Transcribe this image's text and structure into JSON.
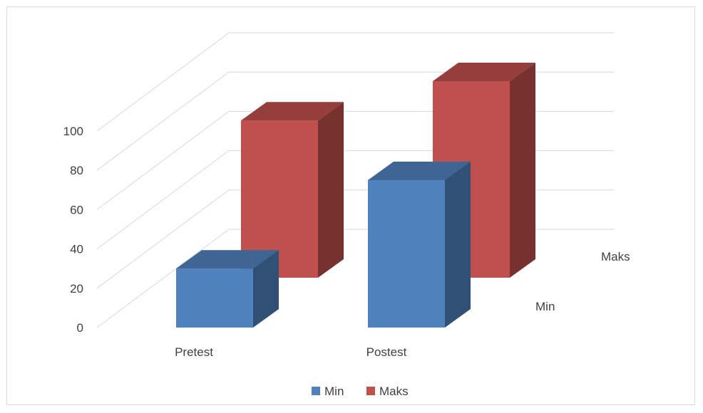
{
  "chart_data": {
    "type": "bar",
    "three_d": true,
    "categories": [
      "Pretest",
      "Postest"
    ],
    "series": [
      {
        "name": "Min",
        "values": [
          30,
          75
        ],
        "color": "#4f81bd"
      },
      {
        "name": "Maks",
        "values": [
          80,
          100
        ],
        "color": "#c0504d"
      }
    ],
    "depth_labels": [
      "Maks",
      "Min"
    ],
    "y_ticks": [
      0,
      20,
      40,
      60,
      80,
      100
    ],
    "ylim": [
      0,
      100
    ],
    "grid": true,
    "legend": {
      "position": "bottom",
      "entries": [
        "Min",
        "Maks"
      ]
    }
  }
}
